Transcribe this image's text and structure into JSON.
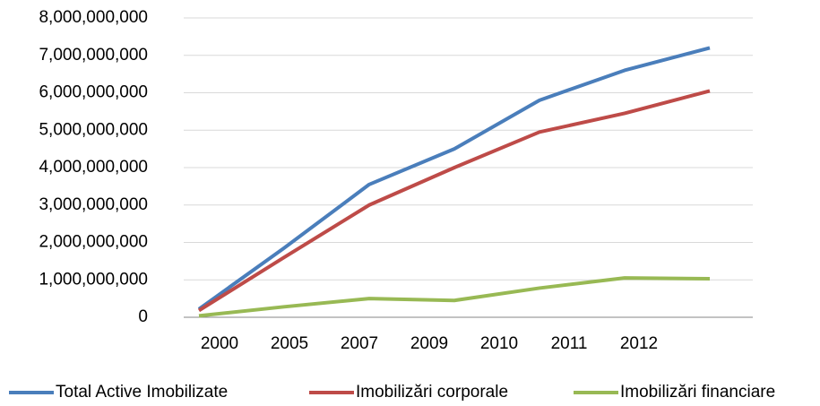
{
  "chart_data": {
    "type": "line",
    "categories": [
      "2000",
      "2005",
      "2007",
      "2009",
      "2010",
      "2011",
      "2012"
    ],
    "series": [
      {
        "name": "Total Active Imobilizate",
        "color": "#4a7ebb",
        "values": [
          220000000,
          1850000000,
          3550000000,
          4500000000,
          5800000000,
          6600000000,
          7200000000
        ]
      },
      {
        "name": "Imobilizări corporale",
        "color": "#be4b48",
        "values": [
          180000000,
          1600000000,
          3000000000,
          4000000000,
          4950000000,
          5450000000,
          6050000000
        ]
      },
      {
        "name": "Imobilizări financiare",
        "color": "#98b954",
        "values": [
          40000000,
          280000000,
          500000000,
          450000000,
          780000000,
          1050000000,
          1030000000
        ]
      }
    ],
    "ylim": [
      0,
      8000000000
    ],
    "yticks": [
      0,
      {
        "value": 1000000000,
        "label": "1,000,000,000"
      },
      {
        "value": 2000000000,
        "label": "2,000,000,000"
      },
      {
        "value": 3000000000,
        "label": "3,000,000,000"
      },
      {
        "value": 4000000000,
        "label": "4,000,000,000"
      },
      {
        "value": 5000000000,
        "label": "5,000,000,000"
      },
      {
        "value": 6000000000,
        "label": "6,000,000,000"
      },
      {
        "value": 7000000000,
        "label": "7,000,000,000"
      },
      {
        "value": 8000000000,
        "label": "8,000,000,000"
      }
    ],
    "grid": true,
    "legend": "bottom"
  }
}
